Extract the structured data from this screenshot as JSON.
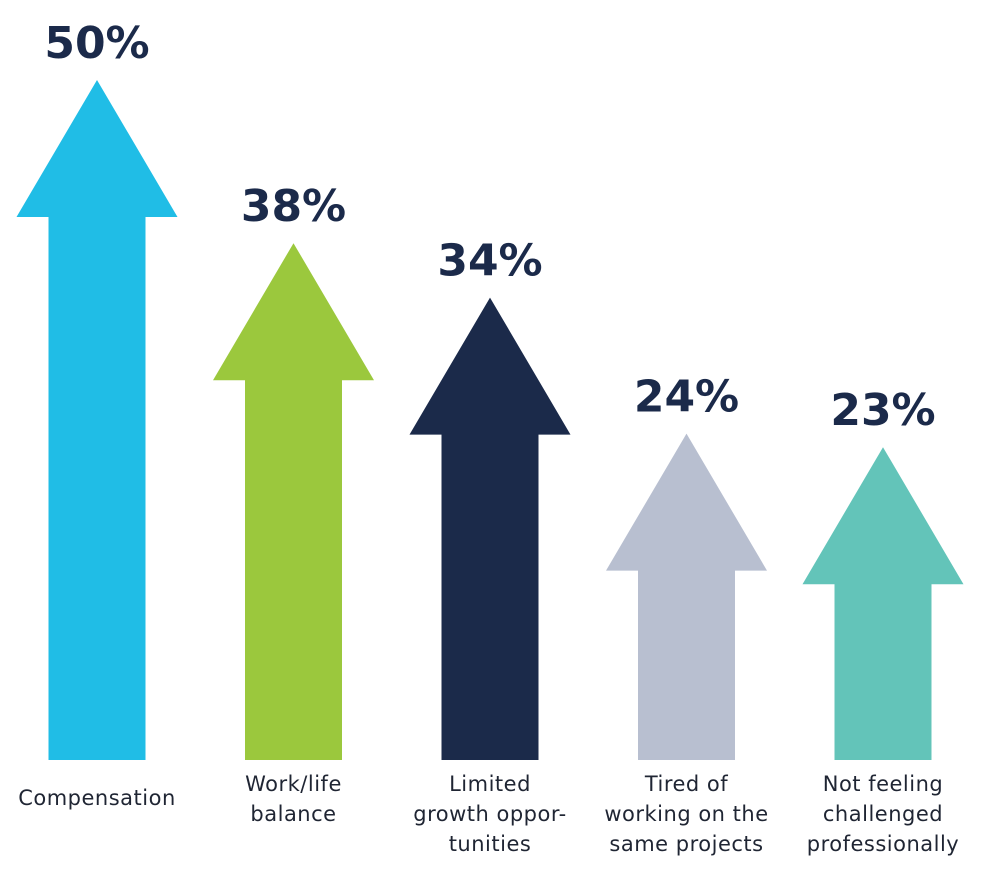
{
  "chart_data": {
    "type": "bar",
    "style": "arrows",
    "categories": [
      "Compensation",
      "Work/life balance",
      "Limited growth oppor-tunities",
      "Tired of working on the same projects",
      "Not feeling challenged professionally"
    ],
    "category_lines": [
      [
        "Compensation"
      ],
      [
        "Work/life",
        "balance"
      ],
      [
        "Limited",
        "growth oppor-",
        "tunities"
      ],
      [
        "Tired of",
        "working on the",
        "same projects"
      ],
      [
        "Not feeling",
        "challenged",
        "professionally"
      ]
    ],
    "values": [
      50,
      38,
      34,
      24,
      23
    ],
    "value_labels": [
      "50%",
      "38%",
      "34%",
      "24%",
      "23%"
    ],
    "colors": [
      "#20bde6",
      "#9bc83d",
      "#1b2a4a",
      "#b8bfd0",
      "#63c4b9"
    ],
    "title": "",
    "xlabel": "",
    "ylabel": "",
    "grid": false,
    "legend": "none"
  }
}
